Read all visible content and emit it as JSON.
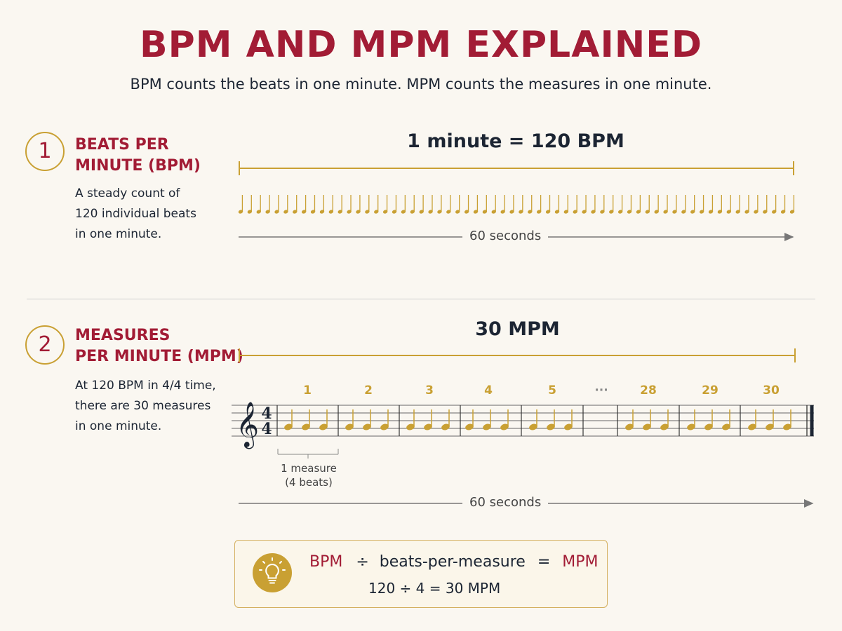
{
  "header": {
    "title": "BPM AND MPM EXPLAINED",
    "subtitle": "BPM counts the beats in one minute. MPM counts the measures in one minute."
  },
  "section1": {
    "number": "1",
    "heading_line1": "BEATS PER",
    "heading_line2": "MINUTE (BPM)",
    "desc_line1": "A steady count of",
    "desc_line2": "120 individual beats",
    "desc_line3": "in one minute.",
    "row_title": "1 minute = 120 BPM",
    "timeline_label": "60 seconds",
    "beat_count_drawn": 62
  },
  "section2": {
    "number": "2",
    "heading_line1": "MEASURES",
    "heading_line2": "PER MINUTE (MPM)",
    "desc_line1": "At 120 BPM in 4/4 time,",
    "desc_line2": "there are 30 measures",
    "desc_line3": "in one minute.",
    "row_title": "30 MPM",
    "time_signature_top": "4",
    "time_signature_bottom": "4",
    "measure_numbers": [
      "1",
      "2",
      "3",
      "4",
      "5",
      "···",
      "28",
      "29",
      "30"
    ],
    "measure_label_line1": "1 measure",
    "measure_label_line2": "(4 beats)",
    "timeline_label": "60 seconds"
  },
  "formula": {
    "term1": "BPM",
    "divide": "÷",
    "term2": "beats-per-measure",
    "equals": "=",
    "term3": "MPM",
    "example": "120 ÷ 4 = 30 MPM",
    "icon": "lightbulb-icon"
  },
  "colors": {
    "accent_red": "#a21c35",
    "gold": "#c9a033",
    "navy": "#1c2533",
    "background": "#faf7f1"
  }
}
